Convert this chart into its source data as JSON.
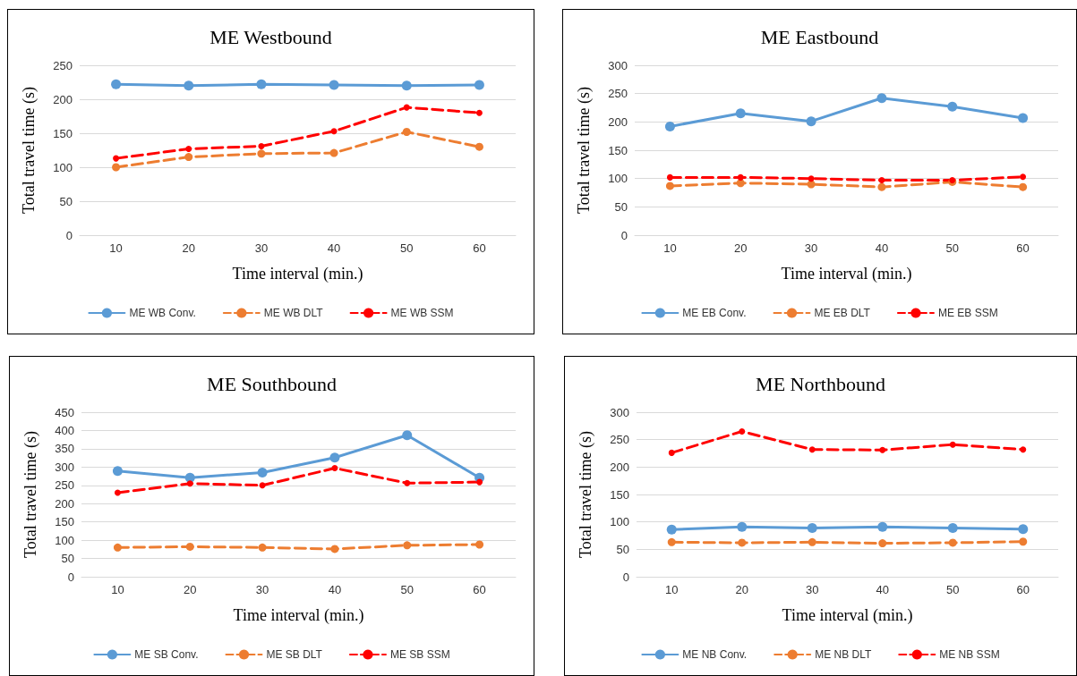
{
  "chart_data": [
    {
      "type": "line",
      "title": "ME Westbound",
      "xlabel": "Time interval (min.)",
      "ylabel": "Total travel time (s)",
      "categories": [
        "10",
        "20",
        "30",
        "40",
        "50",
        "60"
      ],
      "ylim": [
        0,
        250
      ],
      "yticks": [
        0,
        50,
        100,
        150,
        200,
        250
      ],
      "grid": "y",
      "legend": "bottom",
      "marker": "circle",
      "series": [
        {
          "name": "ME WB Conv.",
          "color": "#5b9bd5",
          "line_style": "solid",
          "values": [
            222,
            220,
            222,
            221,
            220,
            221
          ]
        },
        {
          "name": "ME WB DLT",
          "color": "#ed7d31",
          "line_style": "dashed",
          "values": [
            100,
            115,
            120,
            121,
            152,
            130
          ]
        },
        {
          "name": "ME WB SSM",
          "color": "#ff0000",
          "line_style": "dashed",
          "values": [
            113,
            127,
            131,
            153,
            188,
            180
          ]
        }
      ]
    },
    {
      "type": "line",
      "title": "ME Eastbound",
      "xlabel": "Time interval (min.)",
      "ylabel": "Total travel time (s)",
      "categories": [
        "10",
        "20",
        "30",
        "40",
        "50",
        "60"
      ],
      "ylim": [
        0,
        300
      ],
      "yticks": [
        0,
        50,
        100,
        150,
        200,
        250,
        300
      ],
      "grid": "y",
      "legend": "bottom",
      "marker": "circle",
      "series": [
        {
          "name": "ME EB Conv.",
          "color": "#5b9bd5",
          "line_style": "solid",
          "values": [
            192,
            215,
            201,
            242,
            227,
            207
          ]
        },
        {
          "name": "ME EB DLT",
          "color": "#ed7d31",
          "line_style": "dashed",
          "values": [
            87,
            92,
            90,
            85,
            94,
            85
          ]
        },
        {
          "name": "ME EB SSM",
          "color": "#ff0000",
          "line_style": "dashed",
          "values": [
            102,
            102,
            100,
            97,
            97,
            103
          ]
        }
      ]
    },
    {
      "type": "line",
      "title": "ME Southbound",
      "xlabel": "Time interval (min.)",
      "ylabel": "Total travel time (s)",
      "categories": [
        "10",
        "20",
        "30",
        "40",
        "50",
        "60"
      ],
      "ylim": [
        0,
        450
      ],
      "yticks": [
        0,
        50,
        100,
        150,
        200,
        250,
        300,
        350,
        400,
        450
      ],
      "grid": "y",
      "legend": "bottom",
      "marker": "circle",
      "series": [
        {
          "name": "ME SB Conv.",
          "color": "#5b9bd5",
          "line_style": "solid",
          "values": [
            289,
            271,
            285,
            326,
            387,
            271
          ]
        },
        {
          "name": "ME SB DLT",
          "color": "#ed7d31",
          "line_style": "dashed",
          "values": [
            80,
            82,
            80,
            76,
            86,
            88
          ]
        },
        {
          "name": "ME SB SSM",
          "color": "#ff0000",
          "line_style": "dashed",
          "values": [
            230,
            255,
            250,
            297,
            256,
            259
          ]
        }
      ]
    },
    {
      "type": "line",
      "title": "ME Northbound",
      "xlabel": "Time interval (min.)",
      "ylabel": "Total travel time (s)",
      "categories": [
        "10",
        "20",
        "30",
        "40",
        "50",
        "60"
      ],
      "ylim": [
        0,
        300
      ],
      "yticks": [
        0,
        50,
        100,
        150,
        200,
        250,
        300
      ],
      "grid": "y",
      "legend": "bottom",
      "marker": "circle",
      "series": [
        {
          "name": "ME NB Conv.",
          "color": "#5b9bd5",
          "line_style": "solid",
          "values": [
            86,
            91,
            89,
            91,
            89,
            87
          ]
        },
        {
          "name": "ME NB DLT",
          "color": "#ed7d31",
          "line_style": "dashed",
          "values": [
            63,
            62,
            63,
            61,
            62,
            64
          ]
        },
        {
          "name": "ME NB SSM",
          "color": "#ff0000",
          "line_style": "dashed",
          "values": [
            226,
            265,
            232,
            231,
            241,
            232
          ]
        }
      ]
    }
  ]
}
